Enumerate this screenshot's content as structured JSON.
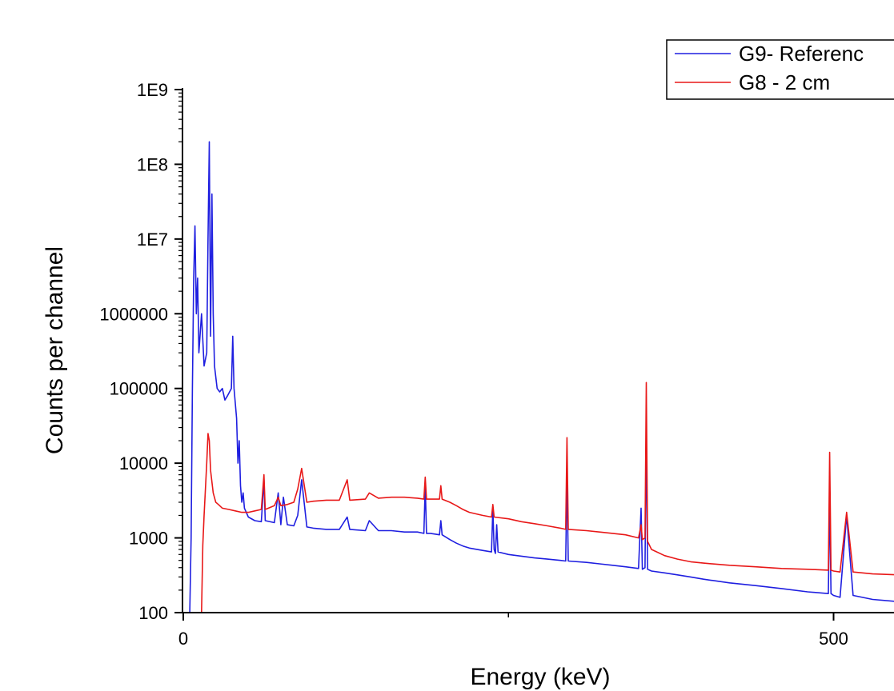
{
  "chart_data": {
    "type": "line",
    "xlabel": "Energy (keV)",
    "ylabel": "Counts per channel",
    "xlim": [
      0,
      550
    ],
    "ylim": [
      100,
      1000000000
    ],
    "yscale": "log",
    "x_ticks": [
      {
        "value": 0,
        "label": "0"
      },
      {
        "value": 500,
        "label": "500"
      }
    ],
    "x_minor_ticks": [
      250
    ],
    "y_ticks": [
      {
        "value": 100,
        "label": "100"
      },
      {
        "value": 1000,
        "label": "1000"
      },
      {
        "value": 10000,
        "label": "10000"
      },
      {
        "value": 100000,
        "label": "100000"
      },
      {
        "value": 1000000,
        "label": "1000000"
      },
      {
        "value": 10000000,
        "label": "1E7"
      },
      {
        "value": 100000000,
        "label": "1E8"
      },
      {
        "value": 1000000000,
        "label": "1E9"
      }
    ],
    "legend_position": "top-right",
    "grid": false,
    "series": [
      {
        "name": "G9- Referenc",
        "color": "#1f1fe0",
        "points": [
          [
            5,
            100
          ],
          [
            6,
            1000
          ],
          [
            7,
            100000
          ],
          [
            8,
            3000000
          ],
          [
            9,
            15000000
          ],
          [
            10,
            1000000
          ],
          [
            11,
            3000000
          ],
          [
            12,
            300000
          ],
          [
            14,
            1000000
          ],
          [
            16,
            200000
          ],
          [
            18,
            300000
          ],
          [
            19,
            10000000
          ],
          [
            20,
            200000000
          ],
          [
            21,
            500000
          ],
          [
            22,
            40000000
          ],
          [
            23,
            1000000
          ],
          [
            24,
            200000
          ],
          [
            26,
            100000
          ],
          [
            28,
            90000
          ],
          [
            30,
            100000
          ],
          [
            32,
            70000
          ],
          [
            34,
            80000
          ],
          [
            37,
            100000
          ],
          [
            38,
            500000
          ],
          [
            39,
            100000
          ],
          [
            41,
            40000
          ],
          [
            42,
            10000
          ],
          [
            43,
            20000
          ],
          [
            44,
            5000
          ],
          [
            45,
            3000
          ],
          [
            46,
            4000
          ],
          [
            47,
            2500
          ],
          [
            50,
            1900
          ],
          [
            55,
            1700
          ],
          [
            60,
            1650
          ],
          [
            62,
            6000
          ],
          [
            63,
            1700
          ],
          [
            70,
            1600
          ],
          [
            73,
            4000
          ],
          [
            75,
            1500
          ],
          [
            77,
            3500
          ],
          [
            80,
            1500
          ],
          [
            85,
            1450
          ],
          [
            88,
            2000
          ],
          [
            91,
            6000
          ],
          [
            95,
            1400
          ],
          [
            100,
            1350
          ],
          [
            110,
            1300
          ],
          [
            120,
            1300
          ],
          [
            126,
            1900
          ],
          [
            128,
            1300
          ],
          [
            140,
            1250
          ],
          [
            143,
            1700
          ],
          [
            150,
            1250
          ],
          [
            160,
            1250
          ],
          [
            170,
            1200
          ],
          [
            180,
            1200
          ],
          [
            185,
            1150
          ],
          [
            186,
            5000
          ],
          [
            187,
            1150
          ],
          [
            190,
            1150
          ],
          [
            197,
            1100
          ],
          [
            198,
            1700
          ],
          [
            199,
            1100
          ],
          [
            205,
            950
          ],
          [
            210,
            850
          ],
          [
            215,
            780
          ],
          [
            220,
            730
          ],
          [
            230,
            680
          ],
          [
            237,
            650
          ],
          [
            238,
            2500
          ],
          [
            239,
            700
          ],
          [
            240,
            620
          ],
          [
            241,
            1500
          ],
          [
            242,
            650
          ],
          [
            250,
            600
          ],
          [
            260,
            570
          ],
          [
            270,
            540
          ],
          [
            280,
            520
          ],
          [
            290,
            500
          ],
          [
            294,
            490
          ],
          [
            295,
            7000
          ],
          [
            296,
            490
          ],
          [
            310,
            470
          ],
          [
            320,
            450
          ],
          [
            330,
            430
          ],
          [
            340,
            410
          ],
          [
            350,
            390
          ],
          [
            352,
            2500
          ],
          [
            353,
            380
          ],
          [
            355,
            400
          ],
          [
            356,
            30000
          ],
          [
            357,
            380
          ],
          [
            360,
            360
          ],
          [
            370,
            340
          ],
          [
            380,
            320
          ],
          [
            390,
            300
          ],
          [
            400,
            280
          ],
          [
            420,
            250
          ],
          [
            440,
            230
          ],
          [
            460,
            210
          ],
          [
            480,
            190
          ],
          [
            496,
            180
          ],
          [
            497,
            3500
          ],
          [
            498,
            180
          ],
          [
            500,
            170
          ],
          [
            505,
            160
          ],
          [
            510,
            2000
          ],
          [
            515,
            170
          ],
          [
            530,
            150
          ],
          [
            550,
            140
          ]
        ]
      },
      {
        "name": "G8 - 2 cm",
        "color": "#e81818",
        "points": [
          [
            14,
            100
          ],
          [
            15,
            800
          ],
          [
            16,
            2000
          ],
          [
            18,
            10000
          ],
          [
            19,
            25000
          ],
          [
            20,
            20000
          ],
          [
            21,
            8000
          ],
          [
            23,
            4000
          ],
          [
            25,
            3000
          ],
          [
            27,
            2800
          ],
          [
            30,
            2500
          ],
          [
            35,
            2400
          ],
          [
            40,
            2300
          ],
          [
            45,
            2200
          ],
          [
            50,
            2200
          ],
          [
            55,
            2300
          ],
          [
            60,
            2400
          ],
          [
            62,
            7000
          ],
          [
            63,
            2400
          ],
          [
            70,
            2700
          ],
          [
            73,
            3500
          ],
          [
            75,
            2700
          ],
          [
            80,
            2800
          ],
          [
            85,
            3000
          ],
          [
            88,
            4500
          ],
          [
            91,
            8500
          ],
          [
            95,
            3000
          ],
          [
            100,
            3100
          ],
          [
            110,
            3200
          ],
          [
            120,
            3200
          ],
          [
            126,
            6000
          ],
          [
            128,
            3200
          ],
          [
            140,
            3300
          ],
          [
            143,
            4000
          ],
          [
            150,
            3400
          ],
          [
            160,
            3500
          ],
          [
            170,
            3500
          ],
          [
            180,
            3400
          ],
          [
            185,
            3300
          ],
          [
            186,
            6500
          ],
          [
            187,
            3300
          ],
          [
            190,
            3300
          ],
          [
            197,
            3300
          ],
          [
            198,
            5000
          ],
          [
            199,
            3300
          ],
          [
            205,
            3000
          ],
          [
            210,
            2700
          ],
          [
            215,
            2400
          ],
          [
            220,
            2200
          ],
          [
            230,
            2000
          ],
          [
            237,
            1900
          ],
          [
            238,
            2800
          ],
          [
            239,
            1900
          ],
          [
            250,
            1800
          ],
          [
            260,
            1650
          ],
          [
            270,
            1550
          ],
          [
            280,
            1450
          ],
          [
            290,
            1350
          ],
          [
            294,
            1300
          ],
          [
            295,
            22000
          ],
          [
            296,
            1300
          ],
          [
            310,
            1250
          ],
          [
            320,
            1200
          ],
          [
            330,
            1150
          ],
          [
            340,
            1100
          ],
          [
            350,
            1000
          ],
          [
            352,
            1500
          ],
          [
            353,
            950
          ],
          [
            355,
            1000
          ],
          [
            356,
            120000
          ],
          [
            357,
            900
          ],
          [
            360,
            700
          ],
          [
            370,
            580
          ],
          [
            380,
            520
          ],
          [
            390,
            480
          ],
          [
            400,
            460
          ],
          [
            420,
            430
          ],
          [
            440,
            410
          ],
          [
            460,
            390
          ],
          [
            480,
            380
          ],
          [
            496,
            370
          ],
          [
            497,
            14000
          ],
          [
            498,
            370
          ],
          [
            500,
            360
          ],
          [
            505,
            350
          ],
          [
            510,
            2200
          ],
          [
            515,
            350
          ],
          [
            530,
            330
          ],
          [
            550,
            320
          ]
        ]
      }
    ]
  }
}
